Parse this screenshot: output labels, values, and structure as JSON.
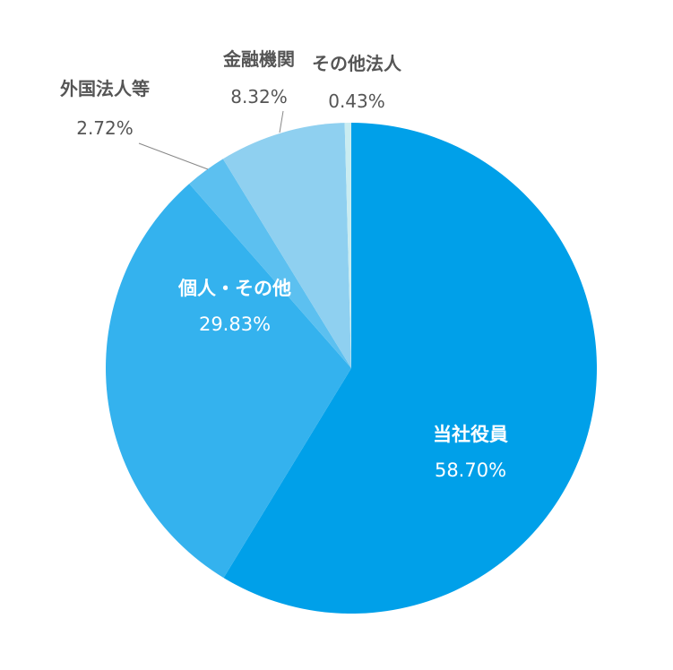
{
  "chart_data": {
    "type": "pie",
    "start_angle_deg": 0,
    "direction": "clockwise",
    "slices": [
      {
        "label": "当社役員",
        "value": 58.7,
        "value_label": "58.70%",
        "color": "#00a0e9",
        "label_position": "inside"
      },
      {
        "label": "個人・その他",
        "value": 29.83,
        "value_label": "29.83%",
        "color": "#34b2ee",
        "label_position": "inside"
      },
      {
        "label": "外国法人等",
        "value": 2.72,
        "value_label": "2.72%",
        "color": "#5cc0f0",
        "label_position": "outside"
      },
      {
        "label": "金融機関",
        "value": 8.32,
        "value_label": "8.32%",
        "color": "#8fd0f0",
        "label_position": "outside"
      },
      {
        "label": "その他法人",
        "value": 0.43,
        "value_label": "0.43%",
        "color": "#c9ecf1",
        "label_position": "outside"
      }
    ]
  }
}
